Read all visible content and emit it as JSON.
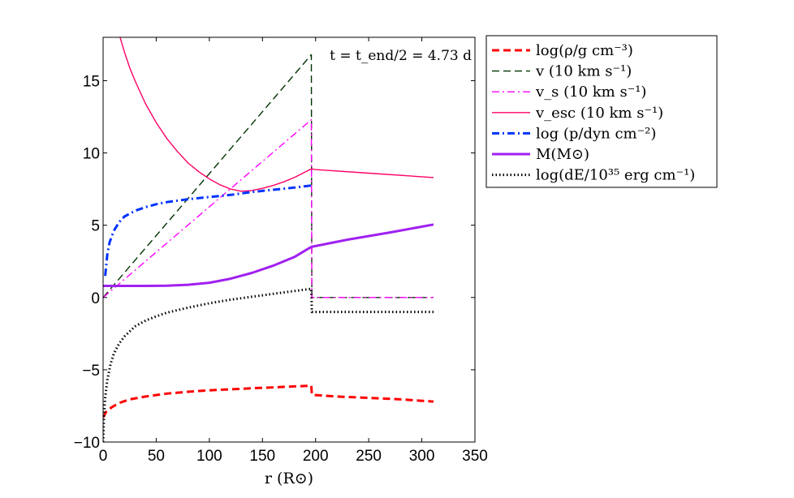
{
  "chart_data": {
    "type": "line",
    "title": "",
    "annotation": "t = t_end/2 = 4.73 d",
    "xlabel": "r (R⊙)",
    "ylabel": "",
    "xlim": [
      0,
      350
    ],
    "ylim": [
      -10,
      18
    ],
    "xticks": [
      0,
      50,
      100,
      150,
      200,
      250,
      300,
      350
    ],
    "yticks": [
      -10,
      -5,
      0,
      5,
      10,
      15
    ],
    "ytick_labels": [
      "−10",
      "−5",
      "0",
      "5",
      "10",
      "15"
    ],
    "legend_position": "outside-top-right",
    "series": [
      {
        "name": "log(ρ/g cm⁻³)",
        "color": "#ff0000",
        "dash": "dashed",
        "width": "thick",
        "x": [
          0,
          3,
          8,
          15,
          25,
          40,
          60,
          80,
          100,
          120,
          140,
          160,
          180,
          196,
          196.5,
          200,
          220,
          250,
          280,
          311
        ],
        "y": [
          -8.3,
          -7.9,
          -7.6,
          -7.3,
          -7.05,
          -6.85,
          -6.65,
          -6.52,
          -6.42,
          -6.35,
          -6.28,
          -6.22,
          -6.15,
          -6.1,
          -6.7,
          -6.75,
          -6.85,
          -6.95,
          -7.05,
          -7.2
        ]
      },
      {
        "name": "v (10 km s⁻¹)",
        "color": "#003300",
        "dash": "dashed",
        "width": "thin",
        "x": [
          0,
          196,
          196.5,
          311
        ],
        "y": [
          0,
          16.8,
          0,
          0
        ]
      },
      {
        "name": "v_s (10 km s⁻¹)",
        "color": "#ff00ff",
        "dash": "dashdot",
        "width": "thin",
        "x": [
          0,
          196,
          196.5,
          311
        ],
        "y": [
          0,
          12.3,
          0,
          0
        ]
      },
      {
        "name": "v_esc (10 km s⁻¹)",
        "color": "#ff0066",
        "dash": "solid",
        "width": "thin",
        "x": [
          16,
          20,
          25,
          30,
          40,
          50,
          60,
          70,
          80,
          90,
          100,
          110,
          120,
          130,
          140,
          150,
          160,
          170,
          180,
          196,
          200,
          250,
          311
        ],
        "y": [
          18,
          17.0,
          15.9,
          15.0,
          13.4,
          12.1,
          11.0,
          10.1,
          9.3,
          8.7,
          8.2,
          7.8,
          7.5,
          7.35,
          7.4,
          7.55,
          7.75,
          8.0,
          8.3,
          8.9,
          8.85,
          8.6,
          8.3
        ]
      },
      {
        "name": "log (p/dyn cm⁻²)",
        "color": "#0033ff",
        "dash": "dashdot",
        "width": "thick",
        "x": [
          2,
          4,
          6,
          10,
          15,
          20,
          30,
          40,
          50,
          60,
          80,
          100,
          120,
          140,
          160,
          180,
          196
        ],
        "y": [
          1.5,
          3.0,
          3.8,
          4.6,
          5.2,
          5.6,
          6.0,
          6.25,
          6.45,
          6.6,
          6.8,
          6.95,
          7.1,
          7.3,
          7.45,
          7.6,
          7.75
        ]
      },
      {
        "name": "M(M⊙)",
        "color": "#a020f0",
        "dash": "solid",
        "width": "thick",
        "x": [
          0,
          40,
          60,
          80,
          100,
          120,
          140,
          160,
          180,
          196,
          230,
          270,
          311
        ],
        "y": [
          0.8,
          0.8,
          0.82,
          0.88,
          1.02,
          1.3,
          1.7,
          2.2,
          2.8,
          3.5,
          4.0,
          4.5,
          5.05
        ]
      },
      {
        "name": "log(dE/10³⁵ erg cm⁻¹)",
        "color": "#000000",
        "dash": "dotted",
        "width": "thick",
        "x": [
          0,
          1,
          2,
          4,
          7,
          10,
          15,
          20,
          30,
          40,
          50,
          60,
          80,
          100,
          120,
          140,
          160,
          180,
          196,
          196.5,
          311
        ],
        "y": [
          -10,
          -8.0,
          -6.9,
          -5.7,
          -4.6,
          -3.9,
          -3.2,
          -2.7,
          -2.0,
          -1.6,
          -1.3,
          -1.05,
          -0.7,
          -0.4,
          -0.15,
          0.05,
          0.25,
          0.45,
          0.6,
          -1.0,
          -1.0
        ]
      }
    ]
  }
}
